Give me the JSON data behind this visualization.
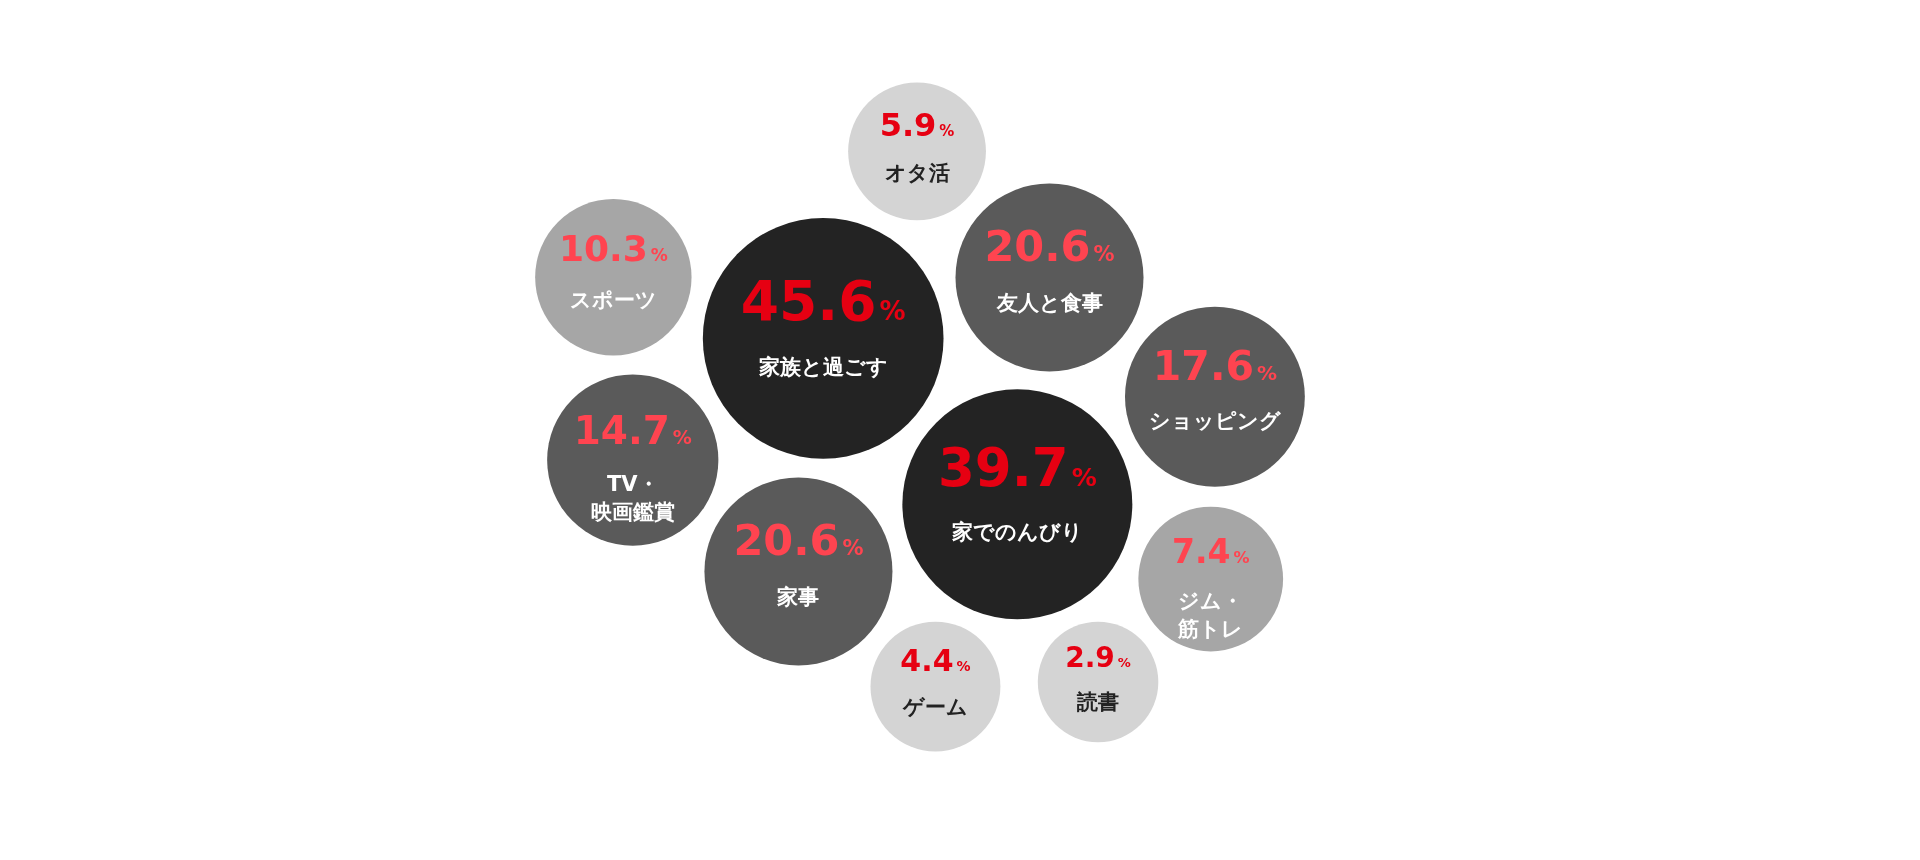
{
  "chart_data": {
    "type": "other",
    "categories": [
      "家族と過ごす",
      "家でのんびり",
      "友人と食事",
      "家事",
      "ショッピング",
      "TV・映画鑑賞",
      "スポーツ",
      "ジム・筋トレ",
      "オタ活",
      "ゲーム",
      "読書"
    ],
    "values": [
      45.6,
      39.7,
      20.6,
      20.6,
      17.6,
      14.7,
      10.3,
      7.4,
      5.9,
      4.4,
      2.9
    ],
    "value_labels": [
      "45.6%",
      "39.7%",
      "20.6%",
      "20.6%",
      "17.6%",
      "14.7%",
      "10.3%",
      "7.4%",
      "5.9%",
      "4.4%",
      "2.9%"
    ],
    "colors": [
      "#232323",
      "#232323",
      "#5a5a5a",
      "#5a5a5a",
      "#5a5a5a",
      "#5a5a5a",
      "#a6a6a6",
      "#a6a6a6",
      "#d4d4d4",
      "#d4d4d4",
      "#d4d4d4"
    ]
  }
}
